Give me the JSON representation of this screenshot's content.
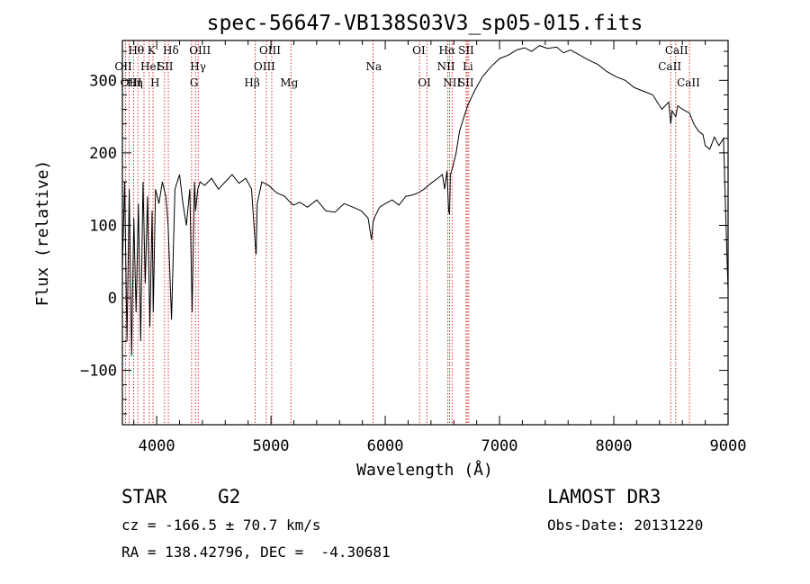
{
  "chart_data": {
    "type": "line",
    "title": "spec-56647-VB138S03V3_sp05-015.fits",
    "xlabel": "Wavelength (Å)",
    "ylabel": "Flux (relative)",
    "xlim": [
      3700,
      9000
    ],
    "ylim": [
      -175,
      355
    ],
    "x_ticks": [
      4000,
      5000,
      6000,
      7000,
      8000,
      9000
    ],
    "y_ticks": [
      -100,
      0,
      100,
      200,
      300
    ],
    "line_color": "#000000",
    "marker_color": "#cc0000",
    "spectrum": {
      "name": "flux",
      "x": [
        3700,
        3720,
        3740,
        3760,
        3780,
        3800,
        3820,
        3840,
        3860,
        3880,
        3900,
        3920,
        3940,
        3960,
        3970,
        3990,
        4020,
        4050,
        4080,
        4100,
        4130,
        4160,
        4200,
        4230,
        4260,
        4290,
        4310,
        4330,
        4340,
        4360,
        4380,
        4420,
        4480,
        4540,
        4600,
        4660,
        4720,
        4780,
        4830,
        4860,
        4870,
        4880,
        4920,
        4980,
        5050,
        5120,
        5180,
        5200,
        5250,
        5320,
        5400,
        5480,
        5560,
        5640,
        5720,
        5790,
        5850,
        5880,
        5895,
        5910,
        5950,
        6000,
        6060,
        6120,
        6180,
        6240,
        6290,
        6340,
        6400,
        6460,
        6500,
        6520,
        6540,
        6555,
        6563,
        6570,
        6590,
        6620,
        6650,
        6680,
        6720,
        6780,
        6850,
        6920,
        7000,
        7080,
        7150,
        7220,
        7280,
        7350,
        7420,
        7500,
        7560,
        7620,
        7700,
        7780,
        7860,
        7940,
        8020,
        8100,
        8180,
        8260,
        8340,
        8420,
        8480,
        8498,
        8510,
        8542,
        8560,
        8600,
        8662,
        8700,
        8740,
        8780,
        8800,
        8840,
        8880,
        8920,
        8960,
        8990,
        9000
      ],
      "y": [
        40,
        160,
        -60,
        150,
        -80,
        110,
        -20,
        130,
        -60,
        160,
        20,
        140,
        -40,
        120,
        -20,
        150,
        130,
        160,
        140,
        100,
        -30,
        150,
        170,
        130,
        100,
        150,
        -20,
        160,
        120,
        150,
        160,
        155,
        165,
        150,
        160,
        170,
        158,
        165,
        150,
        80,
        60,
        130,
        160,
        155,
        145,
        140,
        130,
        128,
        132,
        125,
        135,
        120,
        118,
        130,
        125,
        120,
        110,
        80,
        105,
        112,
        125,
        130,
        135,
        128,
        140,
        142,
        145,
        150,
        158,
        165,
        170,
        150,
        175,
        120,
        115,
        170,
        180,
        200,
        230,
        245,
        265,
        285,
        305,
        318,
        330,
        335,
        342,
        345,
        340,
        348,
        344,
        346,
        338,
        342,
        335,
        328,
        322,
        312,
        305,
        300,
        290,
        285,
        280,
        260,
        270,
        240,
        258,
        250,
        265,
        260,
        255,
        240,
        230,
        225,
        210,
        205,
        222,
        210,
        220,
        60,
        10
      ]
    },
    "line_markers": [
      {
        "name": "Hθ",
        "x": 3798,
        "row": 1,
        "label_dx": -6
      },
      {
        "name": "OII",
        "x": 3727,
        "row": 2,
        "label_dx": -12
      },
      {
        "name": "Hη",
        "x": 3835,
        "row": 3,
        "label_dx": -12
      },
      {
        "name": "OIII",
        "x": 3760,
        "row": 3,
        "label_dx": -10
      },
      {
        "name": "K",
        "x": 3934,
        "row": 1,
        "label_dx": -2
      },
      {
        "name": "HeI",
        "x": 3889,
        "row": 2,
        "label_dx": -4
      },
      {
        "name": "H",
        "x": 3968,
        "row": 3,
        "label_dx": -3
      },
      {
        "name": "SII",
        "x": 4069,
        "row": 2,
        "label_dx": -8
      },
      {
        "name": "Hδ",
        "x": 4102,
        "row": 1,
        "label_dx": -6
      },
      {
        "name": "OIII",
        "x": 4363,
        "row": 1,
        "label_dx": -10
      },
      {
        "name": "Hγ",
        "x": 4340,
        "row": 2,
        "label_dx": -6
      },
      {
        "name": "G",
        "x": 4305,
        "row": 3,
        "label_dx": -2
      },
      {
        "name": "Hβ",
        "x": 4861,
        "row": 3,
        "label_dx": -12
      },
      {
        "name": "OIII",
        "x": 5007,
        "row": 1,
        "label_dx": -14
      },
      {
        "name": "OIII",
        "x": 4959,
        "row": 2,
        "label_dx": -14
      },
      {
        "name": "Mg",
        "x": 5175,
        "row": 3,
        "label_dx": -12
      },
      {
        "name": "Na",
        "x": 5893,
        "row": 2,
        "label_dx": -8
      },
      {
        "name": "OI",
        "x": 6300,
        "row": 1,
        "label_dx": -8
      },
      {
        "name": "OI",
        "x": 6364,
        "row": 3,
        "label_dx": -10
      },
      {
        "name": "Hα",
        "x": 6563,
        "row": 1,
        "label_dx": -12
      },
      {
        "name": "NII",
        "x": 6548,
        "row": 2,
        "label_dx": -12
      },
      {
        "name": "NII",
        "x": 6584,
        "row": 3,
        "label_dx": -10
      },
      {
        "name": "SII",
        "x": 6717,
        "row": 1,
        "label_dx": -10
      },
      {
        "name": "Li",
        "x": 6708,
        "row": 2,
        "label_dx": -4
      },
      {
        "name": "SII",
        "x": 6731,
        "row": 3,
        "label_dx": -12
      },
      {
        "name": "CaII",
        "x": 8542,
        "row": 1,
        "label_dx": -12
      },
      {
        "name": "CaII",
        "x": 8498,
        "row": 2,
        "label_dx": -14
      },
      {
        "name": "CaII",
        "x": 8662,
        "row": 3,
        "label_dx": -14
      }
    ]
  },
  "footer": {
    "object_class": "STAR",
    "subclass": "G2",
    "survey": "LAMOST DR3",
    "redshift": "cz = -166.5 ± 70.7 km/s",
    "obs_date": "Obs-Date: 20131220",
    "coords": "RA = 138.42796, DEC =  -4.30681"
  }
}
